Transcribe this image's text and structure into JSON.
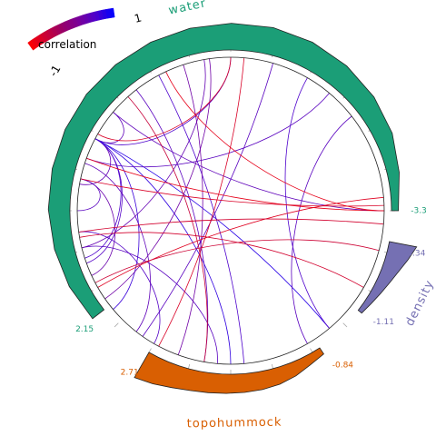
{
  "chart_data": {
    "type": "chord",
    "title": "",
    "legend": {
      "title": "correlation",
      "min_label": "-1",
      "max_label": "1",
      "colors": [
        "#ff0000",
        "#cc0033",
        "#990066",
        "#7a0099",
        "#4d00cc",
        "#0000ff"
      ]
    },
    "tracks": [
      {
        "name": "water",
        "color": "#1b9e77",
        "range": [
          -3.3,
          2.15
        ],
        "min_label": "-3.3",
        "max_label": "2.15",
        "profile": [
          0.5,
          0.62,
          0.7,
          0.78,
          0.82,
          0.86,
          0.9,
          0.92,
          0.94,
          0.96,
          0.98,
          1.0,
          0.97,
          0.9,
          0.8,
          0.65,
          0.4,
          0.2
        ]
      },
      {
        "name": "density",
        "color": "#7570b3",
        "range": [
          -1.11,
          -0.34
        ],
        "min_label": "-1.11",
        "max_label": "-0.34",
        "profile": [
          0.95,
          0.75,
          0.55,
          0.4,
          0.28,
          0.18,
          0.1
        ]
      },
      {
        "name": "topohummock",
        "color": "#d95f02",
        "range": [
          -0.84,
          2.71
        ],
        "min_label": "-0.84",
        "max_label": "2.71",
        "profile": [
          0.2,
          0.3,
          0.45,
          0.55,
          0.6,
          0.62,
          0.64,
          0.66,
          0.7,
          0.78,
          0.9,
          1.0
        ]
      }
    ],
    "links": [
      {
        "from": 208,
        "to": 140,
        "r": 0.7
      },
      {
        "from": 208,
        "to": 160,
        "r": 0.55
      },
      {
        "from": 208,
        "to": 190,
        "r": 0.4
      },
      {
        "from": 208,
        "to": 162,
        "r": 0.6
      },
      {
        "from": 208,
        "to": 220,
        "r": 0.45
      },
      {
        "from": 208,
        "to": 50,
        "r": 0.8
      },
      {
        "from": 208,
        "to": 90,
        "r": 0.75
      },
      {
        "from": 208,
        "to": 270,
        "r": 0.6
      },
      {
        "from": 192,
        "to": 155,
        "r": 0.35
      },
      {
        "from": 192,
        "to": 180,
        "r": 0.5
      },
      {
        "from": 172,
        "to": 120,
        "r": 0.55
      },
      {
        "from": 166,
        "to": 95,
        "r": 0.5
      },
      {
        "from": 166,
        "to": 260,
        "r": 0.4
      },
      {
        "from": 198,
        "to": 128,
        "r": 0.45
      },
      {
        "from": 200,
        "to": 310,
        "r": 0.5
      },
      {
        "from": 220,
        "to": 0,
        "r": 0.45
      },
      {
        "from": 232,
        "to": 100,
        "r": 0.5
      },
      {
        "from": 242,
        "to": 85,
        "r": 0.6
      },
      {
        "from": 252,
        "to": 110,
        "r": 0.3
      },
      {
        "from": 262,
        "to": 145,
        "r": 0.3
      },
      {
        "from": 286,
        "to": 125,
        "r": 0.5
      },
      {
        "from": 300,
        "to": 50,
        "r": 0.6
      },
      {
        "from": 322,
        "to": 60,
        "r": 0.5
      },
      {
        "from": 200,
        "to": 0,
        "r": -0.8
      },
      {
        "from": 210,
        "to": 270,
        "r": -0.7
      },
      {
        "from": 150,
        "to": 355,
        "r": -0.75
      },
      {
        "from": 170,
        "to": 30,
        "r": -0.65
      },
      {
        "from": 192,
        "to": 358,
        "r": -0.7
      },
      {
        "from": 245,
        "to": 0,
        "r": -0.8
      },
      {
        "from": 152,
        "to": 15,
        "r": -0.6
      },
      {
        "from": 228,
        "to": 100,
        "r": -0.55
      },
      {
        "from": 172,
        "to": 5,
        "r": -0.65
      },
      {
        "from": 118,
        "to": 275,
        "r": -0.7
      }
    ]
  }
}
